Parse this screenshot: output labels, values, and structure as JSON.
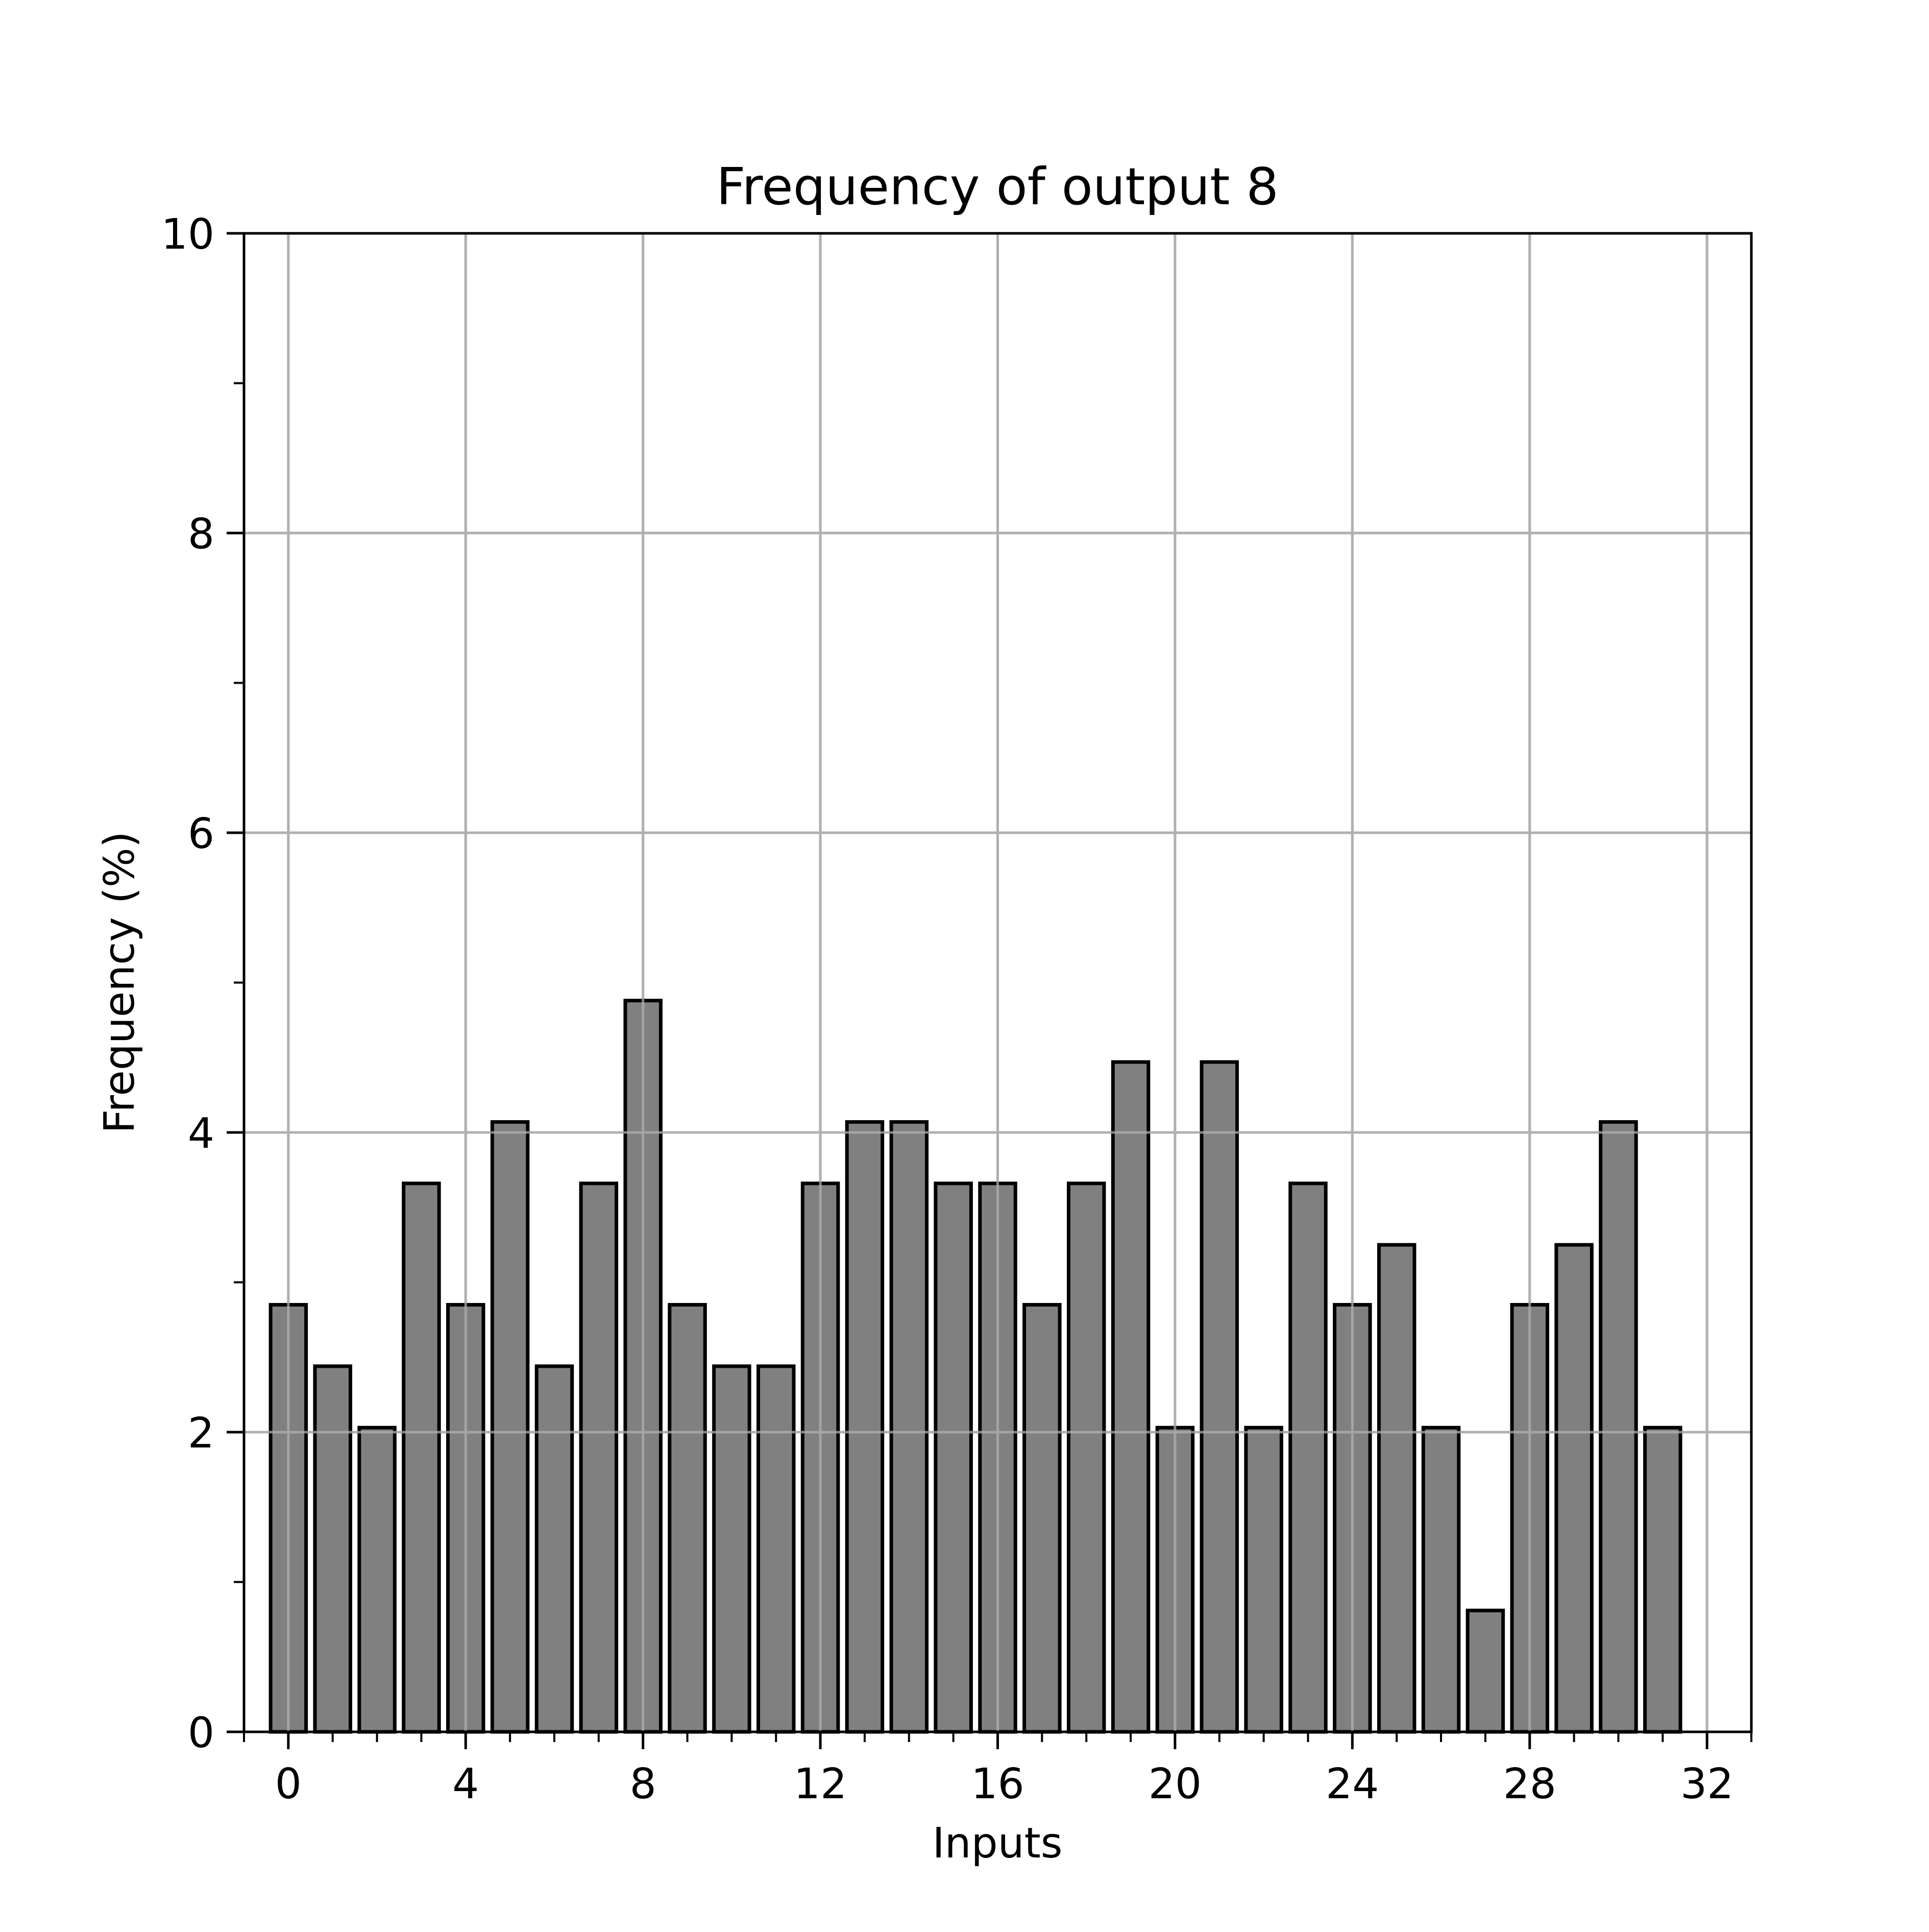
{
  "chart_data": {
    "type": "bar",
    "title": "Frequency of output 8",
    "xlabel": "Inputs",
    "ylabel": "Frequency (%)",
    "x": [
      0,
      1,
      2,
      3,
      4,
      5,
      6,
      7,
      8,
      9,
      10,
      11,
      12,
      13,
      14,
      15,
      16,
      17,
      18,
      19,
      20,
      21,
      22,
      23,
      24,
      25,
      26,
      27,
      28,
      29,
      30,
      31
    ],
    "values": [
      2.85,
      2.44,
      2.03,
      3.66,
      2.85,
      4.07,
      2.44,
      3.66,
      4.88,
      2.85,
      2.44,
      2.44,
      3.66,
      4.07,
      4.07,
      3.66,
      3.66,
      2.85,
      3.66,
      4.47,
      2.03,
      4.47,
      2.03,
      3.66,
      2.85,
      3.25,
      2.03,
      0.81,
      2.85,
      3.25,
      4.07,
      2.03
    ],
    "xlim": [
      -1,
      33
    ],
    "ylim": [
      0,
      10
    ],
    "xticks": [
      0,
      4,
      8,
      12,
      16,
      20,
      24,
      28,
      32
    ],
    "yticks": [
      0,
      2,
      4,
      6,
      8,
      10
    ],
    "grid": true,
    "bar_color": "#808080",
    "edge_color": "#000000",
    "grid_color": "#b0b0b0"
  }
}
